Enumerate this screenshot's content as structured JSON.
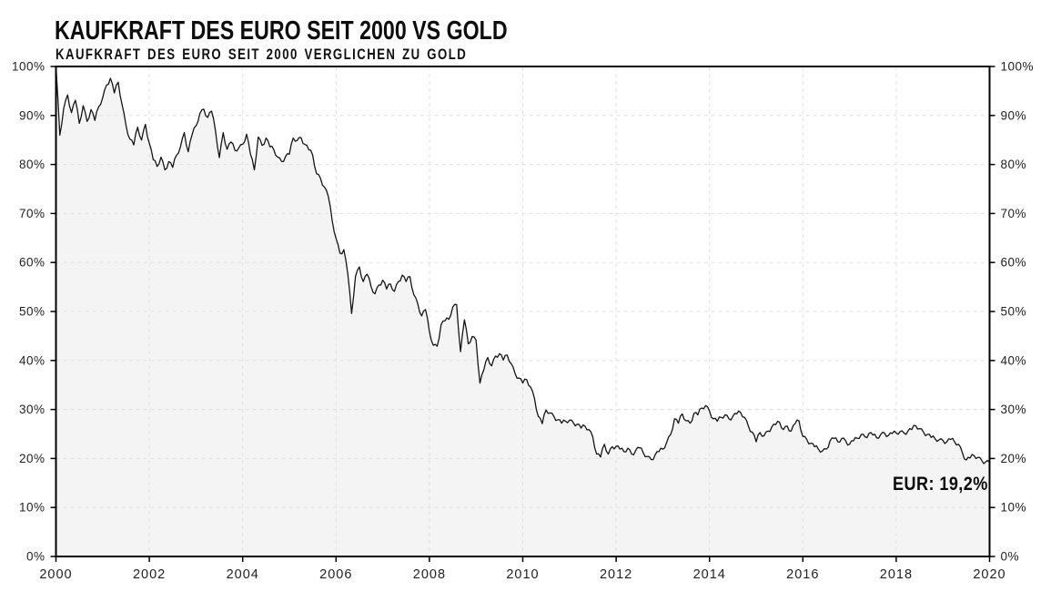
{
  "header": {
    "title": "KAUFKRAFT DES EURO SEIT 2000 VS GOLD",
    "subtitle": "KAUFKRAFT DES EURO SEIT 2000 VERGLICHEN ZU GOLD"
  },
  "annotation": {
    "text": "EUR: 19,2%",
    "value": "19,2%",
    "currency": "EUR"
  },
  "chart_data": {
    "type": "area",
    "title": "KAUFKRAFT DES EURO SEIT 2000 VS GOLD",
    "subtitle": "KAUFKRAFT DES EURO SEIT 2000 VERGLICHEN ZU GOLD",
    "xlabel": "",
    "ylabel": "",
    "xlim": [
      2000,
      2020
    ],
    "ylim": [
      0,
      100
    ],
    "grid": "dashed",
    "legend_position": "none",
    "x_ticks": [
      2000,
      2002,
      2004,
      2006,
      2008,
      2010,
      2012,
      2014,
      2016,
      2018,
      2020
    ],
    "y_ticks": [
      0,
      10,
      20,
      30,
      40,
      50,
      60,
      70,
      80,
      90,
      100
    ],
    "y_tick_suffix": "%",
    "x_start": 2000,
    "points_per_year": 12,
    "final_value_label": "EUR: 19,2%",
    "final_value": 19.2,
    "annotation_anchor": {
      "x": 2019.9,
      "y": 14.2
    },
    "line_color": "#151515",
    "fill_color": "#f4f4f4",
    "grid_color": "#e0e0e0",
    "axis_color": "#000000",
    "tick_label_color": "#222222",
    "values": [
      100,
      86,
      91.5,
      94.2,
      90.6,
      93.1,
      88.4,
      92,
      88.8,
      91.2,
      89,
      91.8,
      93.6,
      96.2,
      97.6,
      94.6,
      96.8,
      92.2,
      88,
      85.2,
      84,
      87.6,
      85,
      88.2,
      84.3,
      81,
      79.6,
      81.5,
      78.9,
      80.6,
      79.4,
      81.9,
      83.6,
      86.5,
      82.6,
      86.1,
      87.9,
      90.4,
      91.3,
      89.6,
      90.9,
      86.9,
      81.4,
      86.5,
      83.1,
      84.6,
      82.9,
      83.4,
      84.1,
      86.2,
      82.1,
      78.9,
      85.6,
      83.9,
      85.4,
      83.6,
      83,
      81.5,
      80.6,
      81.6,
      82.1,
      85.4,
      84.9,
      85.5,
      84.1,
      83,
      81.9,
      78.1,
      77.2,
      75.4,
      73.5,
      68.6,
      64.9,
      61.9,
      62.6,
      57.8,
      49.6,
      57.2,
      59.1,
      56.1,
      57.6,
      55.1,
      53.6,
      55.4,
      56.4,
      54.6,
      55.6,
      54.1,
      56.1,
      57.4,
      56.1,
      57.1,
      53.4,
      51.6,
      49.1,
      50.4,
      45.9,
      43.1,
      42.9,
      47.3,
      48.1,
      48.4,
      50.9,
      51.4,
      41.8,
      48.3,
      43.4,
      44.9,
      44.1,
      35.4,
      38.1,
      40.6,
      38.9,
      40.9,
      41.4,
      40.1,
      41.1,
      39.4,
      37.4,
      36.4,
      35.4,
      36.1,
      34.6,
      32.3,
      28.6,
      27.1,
      29.9,
      29.3,
      28.6,
      27.9,
      27.2,
      27.6,
      27.8,
      27.3,
      27,
      26.2,
      26.6,
      25.9,
      24.4,
      20.9,
      20.3,
      22.9,
      20.9,
      22.4,
      22.5,
      21.9,
      21.4,
      22.1,
      20.9,
      21.6,
      22.2,
      21.1,
      20.4,
      19.8,
      20.7,
      21.4,
      21.9,
      23.3,
      24.9,
      28.1,
      27.2,
      29.1,
      27.7,
      27.2,
      29.2,
      28.9,
      30.3,
      30.8,
      29.7,
      28.1,
      27.6,
      28.4,
      28.9,
      28.1,
      28.6,
      29.1,
      29.4,
      28.4,
      26.6,
      25.4,
      23.4,
      25.3,
      24.6,
      25.6,
      26.4,
      26.9,
      27.4,
      25.9,
      26.6,
      25.6,
      27.1,
      27.7,
      24.5,
      23.9,
      23.1,
      22.4,
      21.9,
      21.5,
      21.9,
      23.6,
      24.1,
      23.4,
      24.1,
      23.6,
      22.9,
      23.6,
      24.1,
      24.9,
      24.4,
      25.1,
      24.8,
      24.2,
      24.9,
      25.2,
      24.7,
      25.1,
      25.2,
      25.5,
      25.2,
      25.6,
      25.9,
      26.7,
      26.1,
      25.4,
      24.9,
      24.3,
      24,
      23.8,
      23.7,
      23.4,
      23.9,
      23.4,
      22.9,
      21.2,
      19.7,
      20.1,
      20.6,
      20.2,
      19.6,
      19.3,
      19.2
    ]
  }
}
